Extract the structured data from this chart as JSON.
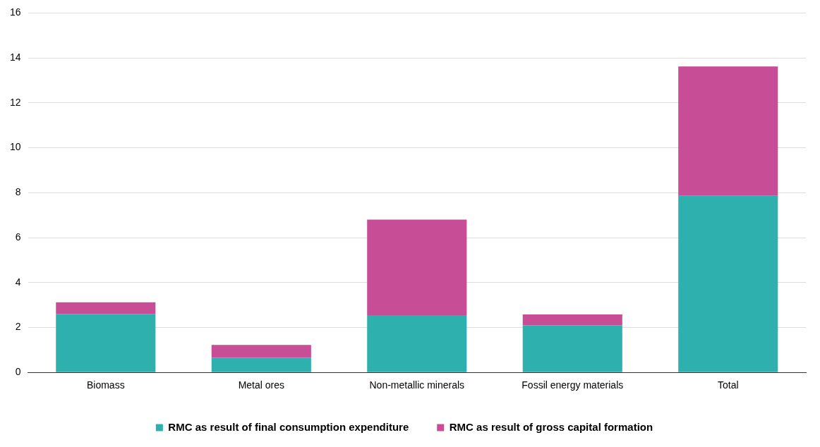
{
  "chart_data": {
    "type": "bar",
    "stacked": true,
    "categories": [
      "Biomass",
      "Metal ores",
      "Non-metallic minerals",
      "Fossil energy materials",
      "Total"
    ],
    "series": [
      {
        "name": "RMC as result of final consumption expenditure",
        "color": "#2db0ae",
        "values": [
          2.6,
          0.65,
          2.55,
          2.1,
          7.86
        ]
      },
      {
        "name": "RMC as result of gross capital formation",
        "color": "#c64d96",
        "values": [
          0.52,
          0.57,
          4.25,
          0.48,
          5.76
        ]
      }
    ],
    "ylim": [
      0,
      16
    ],
    "yticks": [
      0,
      2,
      4,
      6,
      8,
      10,
      12,
      14,
      16
    ],
    "grid": "y",
    "legend": "bottom"
  }
}
